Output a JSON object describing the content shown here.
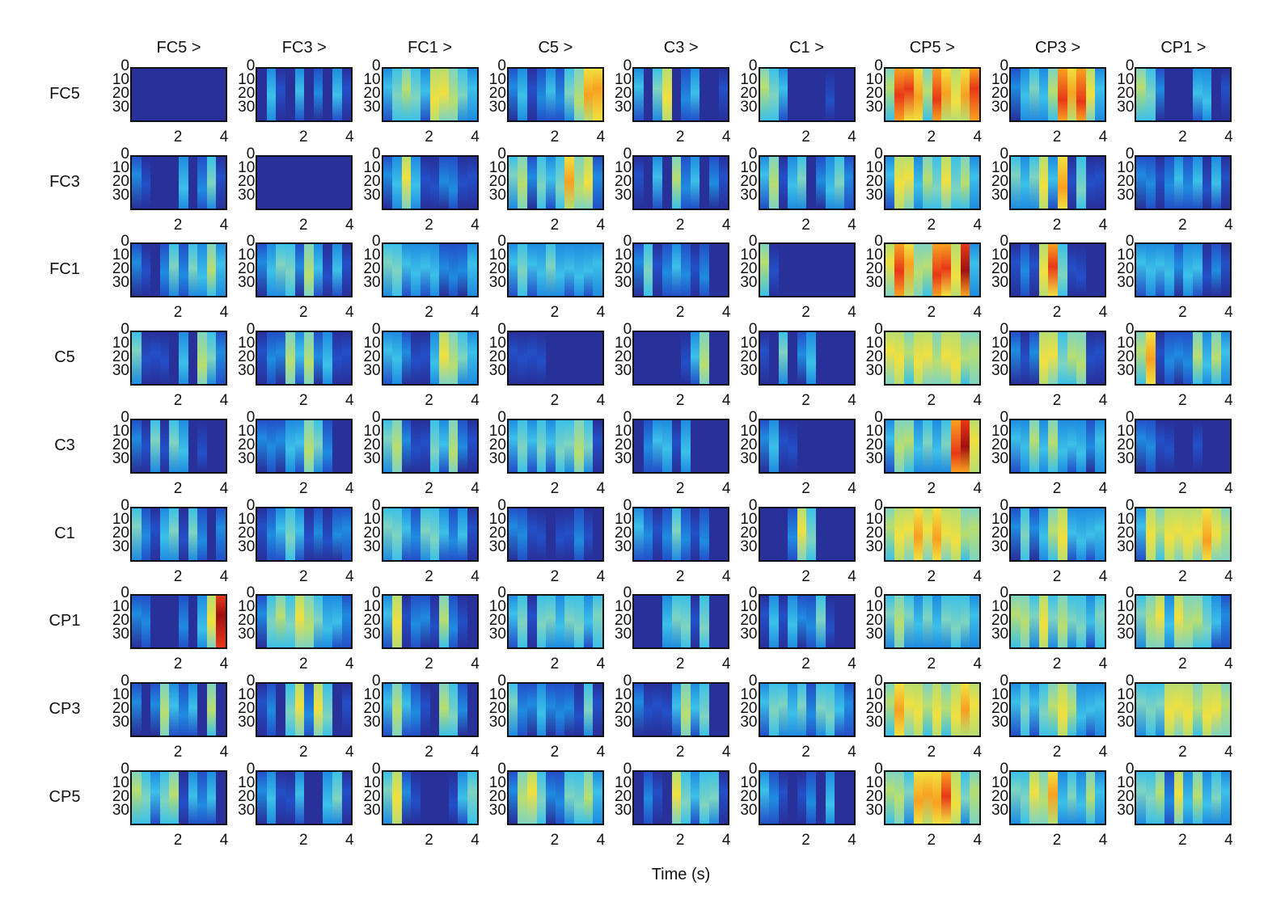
{
  "chart_data": {
    "type": "heatmap",
    "title": "",
    "xlabel": "Time (s)",
    "ylabel": "",
    "column_titles": [
      "FC5 >",
      "FC3 >",
      "FC1 >",
      "C5 >",
      "C3 >",
      "C1 >",
      "CP5 >",
      "CP3 >",
      "CP1 >"
    ],
    "row_labels": [
      "FC5",
      "FC3",
      "FC1",
      "C5",
      "C3",
      "C1",
      "CP1",
      "CP3",
      "CP5"
    ],
    "y_ticks": [
      "0",
      "10",
      "20",
      "30"
    ],
    "x_ticks": [
      "2",
      "4"
    ],
    "ylim": [
      0,
      35
    ],
    "xlim": [
      0,
      4.2
    ],
    "colormap": "jet",
    "colors": [
      "#28309a",
      "#2350c8",
      "#1f8ce0",
      "#3cc0e8",
      "#7fd4c0",
      "#b8de70",
      "#f0e040",
      "#f8a020",
      "#e83818",
      "#a01010"
    ],
    "note_values": "approximate relative intensity (0-9) per time bin, 10 bins per panel",
    "panels": [
      [
        "0000000000",
        "0310302031",
        "3454366543",
        "2312324577",
        "3046023001",
        "5430000100",
        "5887587678",
        "2343587863",
        "5420003301"
      ],
      [
        "2100030241",
        "0000000000",
        "2363112211",
        "4524347562",
        "1030523021",
        "3513402342",
        "3663546453",
        "4346371411",
        "2212323131"
      ],
      [
        "2102424353",
        "2344253131",
        "4433332223",
        "3433433333",
        "2412321200",
        "5100000000",
        "6875588693",
        "1216841100",
        "3333233121"
      ],
      [
        "4111030542",
        "1225352311",
        "3321136543",
        "1111000000",
        "0000013500",
        "1040230000",
        "6656656655",
        "2126645511",
        "5712225353"
      ],
      [
        "2141430100",
        "2223354200",
        "4521143521",
        "3434344541",
        "0233130000",
        "2311000000",
        "3553434896",
        "3353533323",
        "2211001000"
      ],
      [
        "4213414202",
        "1234312122",
        "4432443231",
        "2211011210",
        "3212421200",
        "0002640000",
        "5667676655",
        "2423563333",
        "3656666765"
      ],
      [
        "2200020369",
        "2454654332",
        "3612215210",
        "3414434434",
        "0003441400",
        "1313224100",
        "4543434443",
        "5546454434",
        "4563655432"
      ],
      [
        "2025323050",
        "1204626401",
        "3532105420",
        "4223222141",
        "2111353400",
        "3443424432",
        "5766565676",
        "3434565333",
        "4446665665"
      ],
      [
        "5434513230",
        "2311300341",
        "4621000134",
        "2564224453",
        "0210643441",
        "3210120300",
        "5547778645",
        "4465734353",
        "4452635343"
      ]
    ]
  }
}
